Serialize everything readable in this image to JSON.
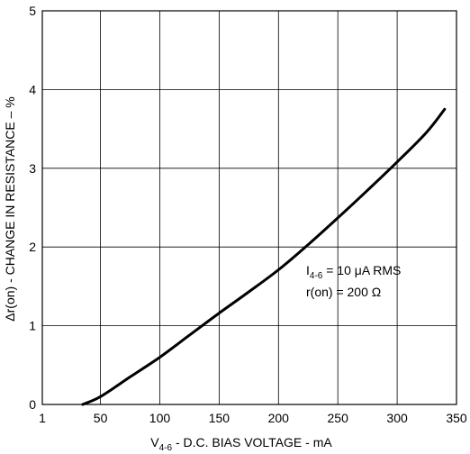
{
  "chart_data": {
    "type": "line",
    "title": "",
    "xlabel": {
      "prefix": "V",
      "sub": "4-6",
      "rest": " - D.C. BIAS VOLTAGE - mA"
    },
    "ylabel": "Δr(on) - CHANGE IN RESISTANCE – %",
    "xlim": [
      1,
      350
    ],
    "ylim": [
      0,
      5
    ],
    "x_ticks": [
      1,
      50,
      100,
      150,
      200,
      250,
      300,
      350
    ],
    "x_tick_labels": [
      "1",
      "50",
      "100",
      "150",
      "200",
      "250",
      "300",
      "350"
    ],
    "y_ticks": [
      0,
      1,
      2,
      3,
      4,
      5
    ],
    "y_tick_labels": [
      "0",
      "1",
      "2",
      "3",
      "4",
      "5"
    ],
    "grid": true,
    "series": [
      {
        "x": [
          35,
          50,
          75,
          100,
          125,
          150,
          175,
          200,
          225,
          250,
          275,
          300,
          325,
          340
        ],
        "y": [
          0.0,
          0.1,
          0.35,
          0.6,
          0.88,
          1.16,
          1.43,
          1.71,
          2.03,
          2.37,
          2.72,
          3.08,
          3.46,
          3.75
        ]
      }
    ],
    "annotation": {
      "line1": {
        "prefix": "I",
        "sub": "4-6",
        "rest": " = 10 μA RMS"
      },
      "line2": "r(on) = 200 Ω"
    }
  }
}
